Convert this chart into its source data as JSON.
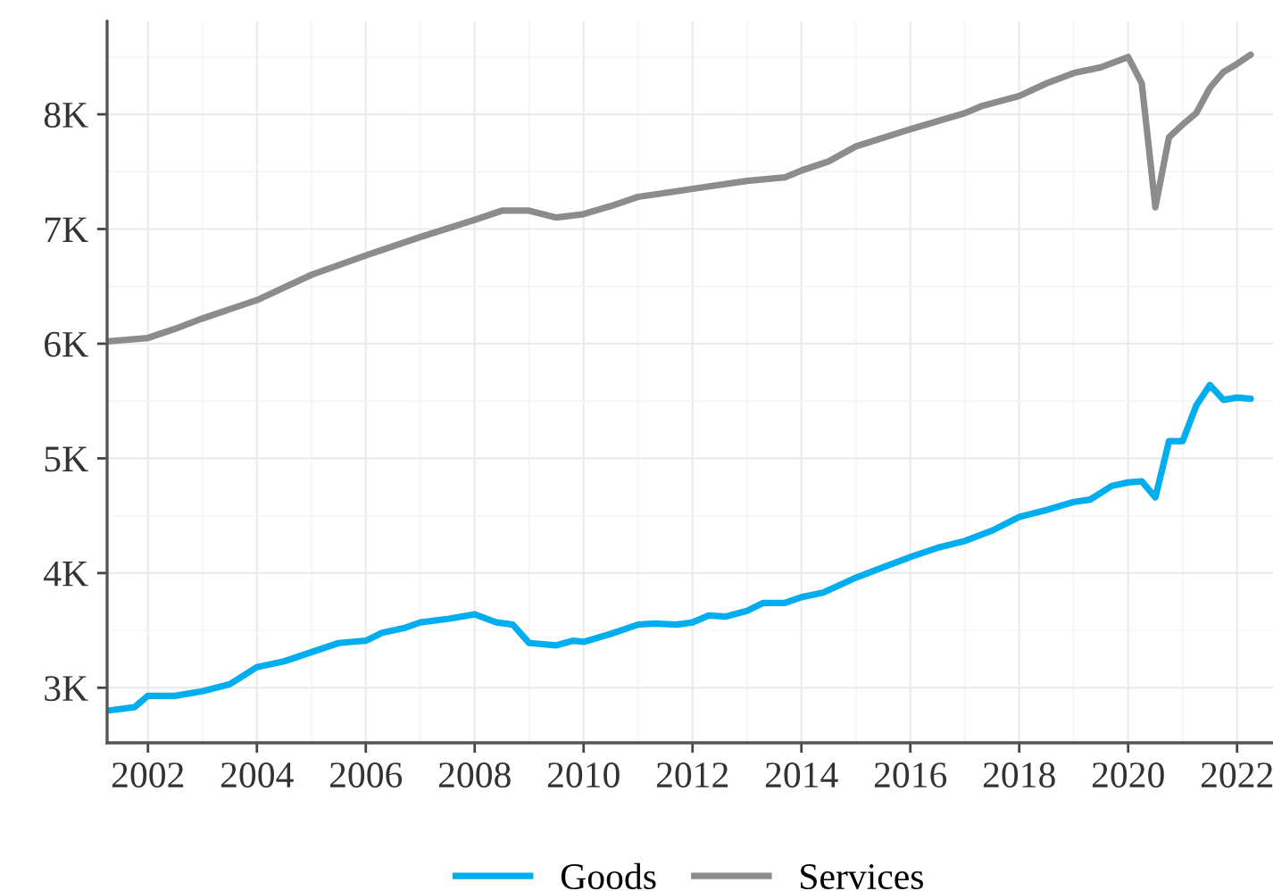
{
  "chart_data": {
    "type": "line",
    "xlim": [
      2001.25,
      2022.66
    ],
    "ylim": [
      2520,
      8810
    ],
    "xticks": [
      2002,
      2004,
      2006,
      2008,
      2010,
      2012,
      2014,
      2016,
      2018,
      2020,
      2022
    ],
    "yticks": [
      {
        "value": 3000,
        "label": "3K"
      },
      {
        "value": 4000,
        "label": "4K"
      },
      {
        "value": 5000,
        "label": "5K"
      },
      {
        "value": 6000,
        "label": "6K"
      },
      {
        "value": 7000,
        "label": "7K"
      },
      {
        "value": 8000,
        "label": "8K"
      }
    ],
    "grid": true,
    "legend": "bottom",
    "marker": "none",
    "line_style": "solid",
    "series": [
      {
        "name": "Goods",
        "color": "#00aeef",
        "x": [
          2001.25,
          2001.75,
          2002,
          2002.5,
          2003,
          2003.5,
          2004,
          2004.5,
          2005,
          2005.5,
          2006,
          2006.3,
          2006.7,
          2007,
          2007.5,
          2008,
          2008.4,
          2008.7,
          2009,
          2009.5,
          2009.8,
          2010,
          2010.5,
          2011,
          2011.3,
          2011.7,
          2012,
          2012.3,
          2012.6,
          2013,
          2013.3,
          2013.7,
          2014,
          2014.4,
          2015,
          2015.5,
          2016,
          2016.5,
          2017,
          2017.5,
          2018,
          2018.5,
          2019,
          2019.3,
          2019.7,
          2020,
          2020.25,
          2020.5,
          2020.75,
          2021,
          2021.25,
          2021.5,
          2021.75,
          2022,
          2022.25
        ],
        "values": [
          2800,
          2830,
          2930,
          2930,
          2970,
          3030,
          3180,
          3230,
          3310,
          3390,
          3410,
          3480,
          3520,
          3570,
          3600,
          3640,
          3570,
          3550,
          3390,
          3370,
          3410,
          3400,
          3470,
          3550,
          3560,
          3550,
          3570,
          3630,
          3620,
          3670,
          3740,
          3740,
          3790,
          3830,
          3960,
          4050,
          4140,
          4220,
          4280,
          4370,
          4490,
          4550,
          4620,
          4640,
          4760,
          4790,
          4800,
          4660,
          5150,
          5150,
          5460,
          5640,
          5510,
          5530,
          5520
        ]
      },
      {
        "name": "Services",
        "color": "#8c8c8c",
        "x": [
          2001.25,
          2001.75,
          2002,
          2002.5,
          2003,
          2004,
          2005,
          2006,
          2007,
          2008,
          2008.5,
          2009,
          2009.5,
          2010,
          2010.5,
          2011,
          2012,
          2013,
          2013.7,
          2014,
          2014.5,
          2015,
          2016,
          2017,
          2017.3,
          2018,
          2018.5,
          2019,
          2019.5,
          2020,
          2020.25,
          2020.5,
          2020.75,
          2021,
          2021.25,
          2021.5,
          2021.75,
          2022,
          2022.25
        ],
        "values": [
          6020,
          6040,
          6050,
          6130,
          6220,
          6380,
          6600,
          6770,
          6930,
          7080,
          7160,
          7160,
          7100,
          7130,
          7200,
          7280,
          7350,
          7420,
          7450,
          7510,
          7590,
          7720,
          7870,
          8010,
          8070,
          8160,
          8270,
          8360,
          8410,
          8500,
          8270,
          7190,
          7800,
          7910,
          8010,
          8230,
          8370,
          8440,
          8520
        ]
      }
    ]
  }
}
